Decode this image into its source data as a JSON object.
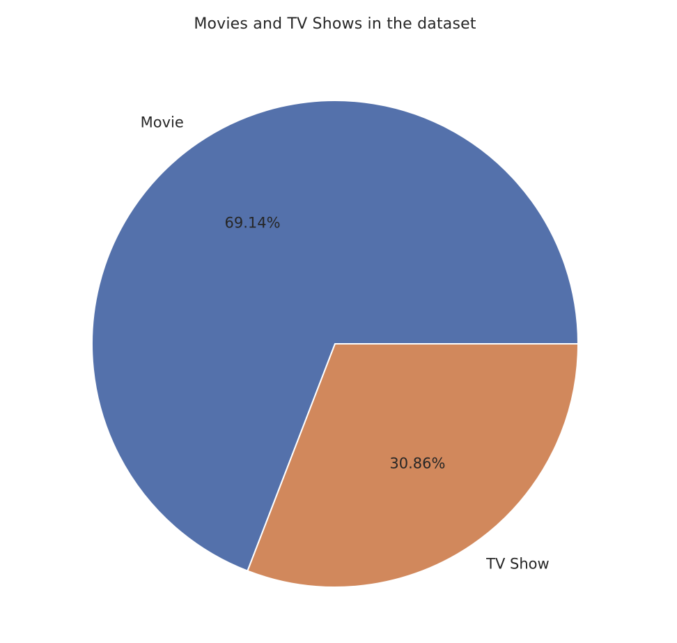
{
  "chart_data": {
    "type": "pie",
    "title": "Movies and TV Shows in the dataset",
    "slices": [
      {
        "label": "Movie",
        "value": 69.14,
        "pct_label": "69.14%",
        "color": "#5471ab"
      },
      {
        "label": "TV Show",
        "value": 30.86,
        "pct_label": "30.86%",
        "color": "#d1885c"
      }
    ],
    "start_angle": 0,
    "direction": "counterclockwise",
    "legend": "none"
  }
}
